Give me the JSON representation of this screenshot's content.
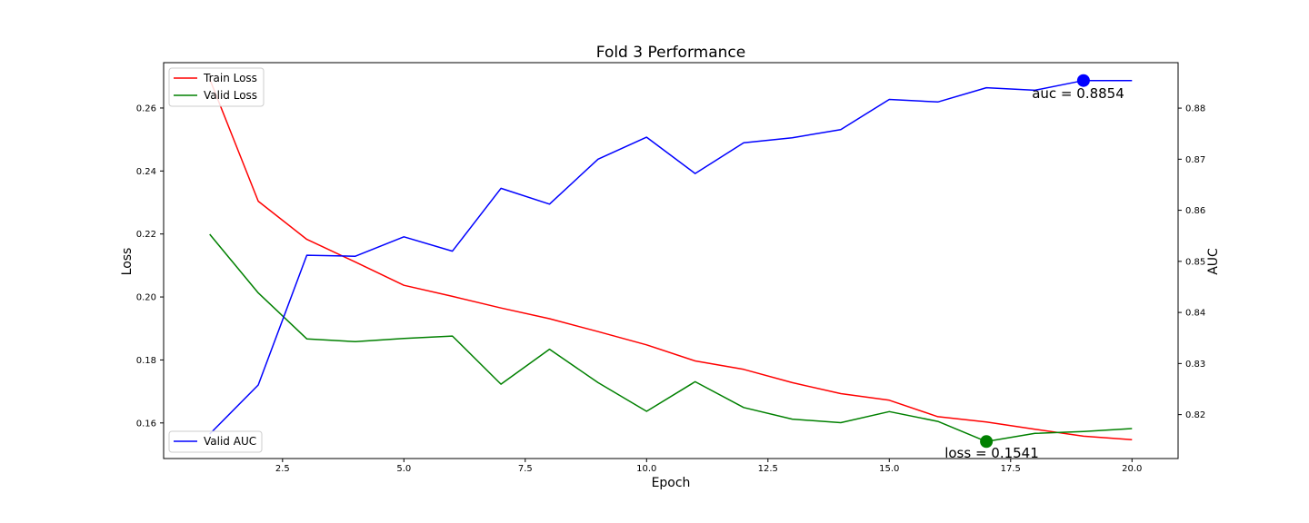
{
  "chart_data": {
    "type": "line",
    "title": "Fold 3 Performance",
    "xlabel": "Epoch",
    "ylabel_left": "Loss",
    "ylabel_right": "AUC",
    "xlim": [
      0.05,
      20.95
    ],
    "ylim_left": [
      0.1487,
      0.2744
    ],
    "ylim_right": [
      0.8114,
      0.8889
    ],
    "x_ticks": [
      "2.5",
      "5.0",
      "7.5",
      "10.0",
      "12.5",
      "15.0",
      "17.5",
      "20.0"
    ],
    "y_left_ticks": [
      "0.16",
      "0.18",
      "0.20",
      "0.22",
      "0.24",
      "0.26"
    ],
    "y_right_ticks": [
      "0.82",
      "0.83",
      "0.84",
      "0.85",
      "0.86",
      "0.87",
      "0.88"
    ],
    "x": [
      1,
      2,
      3,
      4,
      5,
      6,
      7,
      8,
      9,
      10,
      11,
      12,
      13,
      14,
      15,
      16,
      17,
      18,
      19,
      20
    ],
    "series": [
      {
        "name": "Train Loss",
        "axis": "left",
        "color": "#ff0000",
        "values": [
          0.2692,
          0.2304,
          0.2183,
          0.2111,
          0.2037,
          0.2002,
          0.1965,
          0.1931,
          0.189,
          0.1848,
          0.1797,
          0.177,
          0.1728,
          0.1693,
          0.1672,
          0.162,
          0.1603,
          0.158,
          0.1558,
          0.1547
        ]
      },
      {
        "name": "Valid Loss",
        "axis": "left",
        "color": "#008000",
        "values": [
          0.2199,
          0.2013,
          0.1867,
          0.1858,
          0.1868,
          0.1876,
          0.1723,
          0.1834,
          0.1728,
          0.1637,
          0.1731,
          0.1649,
          0.1612,
          0.1601,
          0.1636,
          0.1605,
          0.1541,
          0.1567,
          0.1573,
          0.1582
        ]
      },
      {
        "name": "Valid AUC",
        "axis": "right",
        "color": "#0000ff",
        "values": [
          0.8162,
          0.8258,
          0.8512,
          0.851,
          0.8548,
          0.852,
          0.8643,
          0.8612,
          0.87,
          0.8743,
          0.8672,
          0.8732,
          0.8742,
          0.8758,
          0.8817,
          0.8812,
          0.884,
          0.8835,
          0.8854,
          0.8854
        ]
      }
    ],
    "legends": [
      {
        "placement": "upper-left",
        "entries": [
          "Train Loss",
          "Valid Loss"
        ]
      },
      {
        "placement": "lower-left",
        "entries": [
          "Valid AUC"
        ]
      }
    ],
    "annotations": [
      {
        "text": "auc = 0.8854",
        "x": 19,
        "y": 0.8854,
        "axis": "right",
        "color": "#0000ff"
      },
      {
        "text": "loss = 0.1541",
        "x": 17,
        "y": 0.1541,
        "axis": "left",
        "color": "#008000"
      }
    ],
    "grid": false
  }
}
